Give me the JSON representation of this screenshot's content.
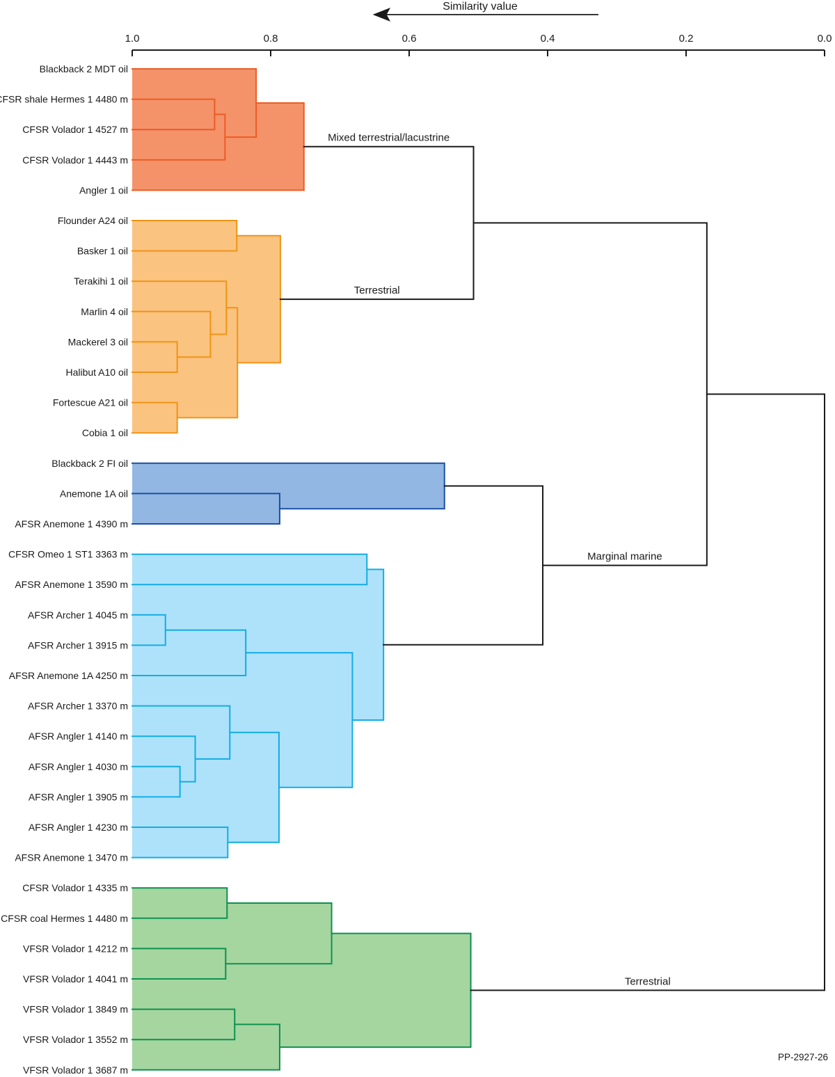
{
  "footnote": "PP-2927-26",
  "chart_data": {
    "type": "dendrogram",
    "title": "Similarity value",
    "orientation": "right-to-left",
    "axis": {
      "label": "Similarity value",
      "min": 0.0,
      "max": 1.0,
      "ticks": [
        "1.0",
        "0.8",
        "0.6",
        "0.4",
        "0.2",
        "0.0"
      ],
      "arrow_direction": "left"
    },
    "text_color": "#1a1a1a",
    "line_color": "#1a1a1a",
    "clusters": {
      "mixed": {
        "fill": "#f4936a",
        "stroke": "#ec5b24"
      },
      "terrestrial_oils": {
        "fill": "#fbc380",
        "stroke": "#ef9416"
      },
      "marine_oils": {
        "fill": "#92b7e3",
        "stroke": "#1c4fa5"
      },
      "marine_rocks": {
        "fill": "#aee2fa",
        "stroke": "#11ade4"
      },
      "terrestrial_rocks": {
        "fill": "#a5d6a0",
        "stroke": "#0e9050"
      }
    },
    "group_labels": [
      "Mixed terrestrial/lacustrine",
      "Terrestrial",
      "Marginal marine",
      "Terrestrial"
    ],
    "tree": {
      "sim": 0.0,
      "children": [
        {
          "sim": 0.17,
          "children": [
            {
              "sim": 0.507,
              "children": [
                {
                  "sim": 0.752,
                  "cluster": "mixed",
                  "link_label": "Mixed terrestrial/lacustrine",
                  "children": [
                    {
                      "sim": 0.821,
                      "children": [
                        {
                          "leaf": "Blackback 2 MDT oil"
                        },
                        {
                          "sim": 0.866,
                          "children": [
                            {
                              "sim": 0.881,
                              "children": [
                                {
                                  "leaf": "CFSR shale Hermes 1 4480 m"
                                },
                                {
                                  "leaf": "CFSR Volador 1 4527 m"
                                }
                              ]
                            },
                            {
                              "leaf": "CFSR Volador 1 4443 m"
                            }
                          ]
                        }
                      ]
                    },
                    {
                      "leaf": "Angler 1 oil"
                    }
                  ]
                },
                {
                  "sim": 0.786,
                  "cluster": "terrestrial_oils",
                  "link_label": "Terrestrial",
                  "children": [
                    {
                      "sim": 0.849,
                      "children": [
                        {
                          "leaf": "Flounder A24 oil"
                        },
                        {
                          "leaf": "Basker 1 oil"
                        }
                      ]
                    },
                    {
                      "sim": 0.848,
                      "children": [
                        {
                          "sim": 0.864,
                          "children": [
                            {
                              "leaf": "Terakihi 1 oil"
                            },
                            {
                              "sim": 0.887,
                              "children": [
                                {
                                  "leaf": "Marlin 4 oil"
                                },
                                {
                                  "sim": 0.935,
                                  "children": [
                                    {
                                      "leaf": "Mackerel 3 oil"
                                    },
                                    {
                                      "leaf": "Halibut A10 oil"
                                    }
                                  ]
                                }
                              ]
                            }
                          ]
                        },
                        {
                          "sim": 0.935,
                          "children": [
                            {
                              "leaf": "Fortescue A21 oil"
                            },
                            {
                              "leaf": "Cobia 1 oil"
                            }
                          ]
                        }
                      ]
                    }
                  ]
                }
              ]
            },
            {
              "sim": 0.407,
              "link_label": "Marginal marine",
              "children": [
                {
                  "sim": 0.549,
                  "cluster": "marine_oils",
                  "children": [
                    {
                      "leaf": "Blackback 2 FI oil"
                    },
                    {
                      "sim": 0.787,
                      "children": [
                        {
                          "leaf": "Anemone 1A oil"
                        },
                        {
                          "leaf": "AFSR Anemone 1 4390 m"
                        }
                      ]
                    }
                  ]
                },
                {
                  "sim": 0.637,
                  "cluster": "marine_rocks",
                  "children": [
                    {
                      "sim": 0.661,
                      "children": [
                        {
                          "leaf": "CFSR Omeo 1 ST1 3363 m"
                        },
                        {
                          "leaf": "AFSR Anemone 1 3590 m"
                        }
                      ]
                    },
                    {
                      "sim": 0.682,
                      "children": [
                        {
                          "sim": 0.836,
                          "children": [
                            {
                              "sim": 0.952,
                              "children": [
                                {
                                  "leaf": "AFSR Archer 1 4045 m"
                                },
                                {
                                  "leaf": "AFSR Archer 1 3915 m"
                                }
                              ]
                            },
                            {
                              "leaf": "AFSR Anemone 1A 4250 m"
                            }
                          ]
                        },
                        {
                          "sim": 0.788,
                          "children": [
                            {
                              "sim": 0.859,
                              "children": [
                                {
                                  "leaf": "AFSR Archer 1 3370 m"
                                },
                                {
                                  "sim": 0.909,
                                  "children": [
                                    {
                                      "leaf": "AFSR Angler 1 4140 m"
                                    },
                                    {
                                      "sim": 0.931,
                                      "children": [
                                        {
                                          "leaf": "AFSR Angler 1 4030 m"
                                        },
                                        {
                                          "leaf": "AFSR Angler 1 3905 m"
                                        }
                                      ]
                                    }
                                  ]
                                }
                              ]
                            },
                            {
                              "sim": 0.862,
                              "children": [
                                {
                                  "leaf": "AFSR Angler 1 4230 m"
                                },
                                {
                                  "leaf": "AFSR Anemone 1 3470 m"
                                }
                              ]
                            }
                          ]
                        }
                      ]
                    }
                  ]
                }
              ]
            }
          ]
        },
        {
          "sim": 0.511,
          "cluster": "terrestrial_rocks",
          "link_label": "Terrestrial",
          "children": [
            {
              "sim": 0.712,
              "children": [
                {
                  "sim": 0.863,
                  "children": [
                    {
                      "leaf": "CFSR Volador 1 4335 m"
                    },
                    {
                      "leaf": "CFSR coal Hermes 1 4480 m"
                    }
                  ]
                },
                {
                  "sim": 0.865,
                  "children": [
                    {
                      "leaf": "VFSR Volador 1 4212 m"
                    },
                    {
                      "leaf": "VFSR Volador 1 4041 m"
                    }
                  ]
                }
              ]
            },
            {
              "sim": 0.787,
              "children": [
                {
                  "sim": 0.852,
                  "children": [
                    {
                      "leaf": "VFSR Volador 1 3849 m"
                    },
                    {
                      "leaf": "VFSR Volador 1 3552 m"
                    }
                  ]
                },
                {
                  "leaf": "VFSR Volador 1 3687 m"
                }
              ]
            }
          ]
        }
      ]
    }
  }
}
